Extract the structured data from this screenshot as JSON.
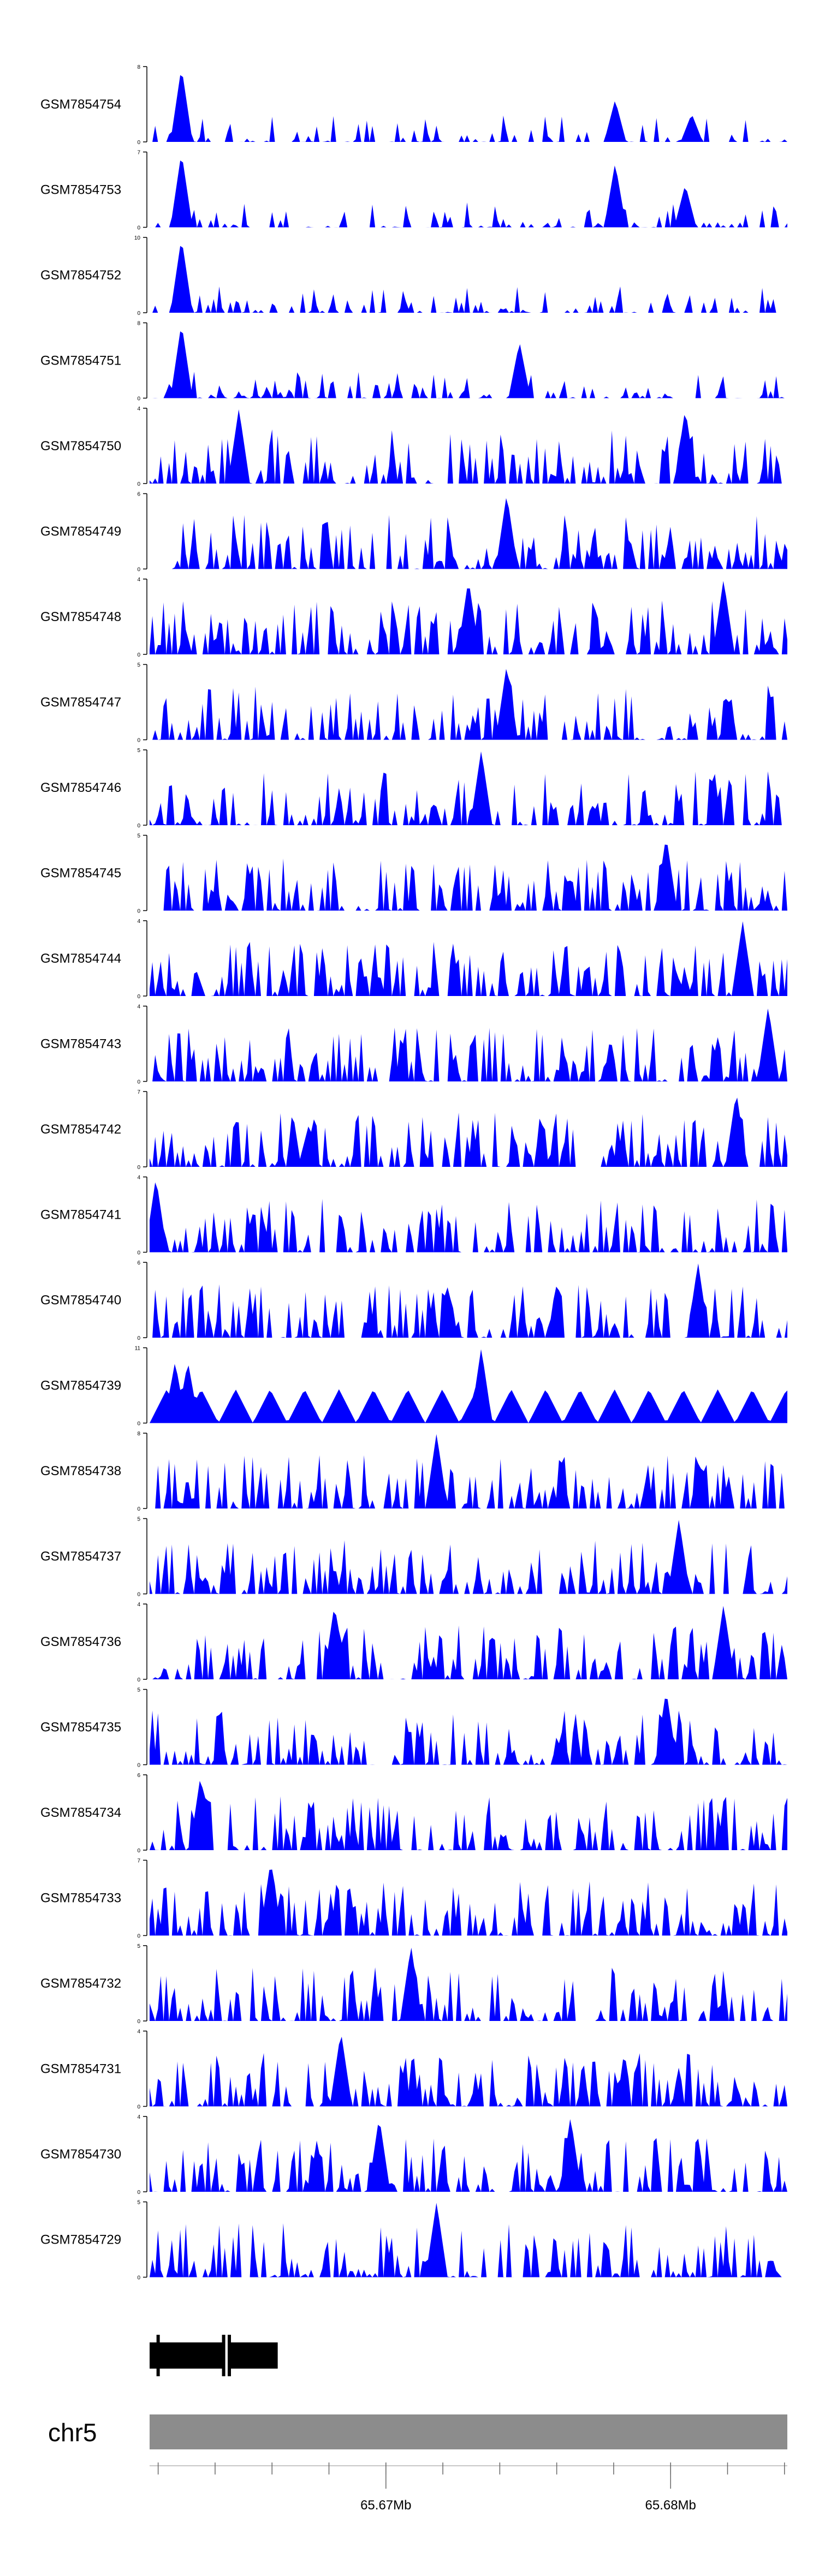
{
  "chart_data": {
    "type": "area",
    "title": "",
    "chromosome": "chr5",
    "axis": {
      "range_mb": [
        65.6617,
        65.6841
      ],
      "major_ticks": [
        {
          "value": 65.67,
          "label": "65.67Mb"
        },
        {
          "value": 65.68,
          "label": "65.68Mb"
        }
      ],
      "minor_tick_step_mb": 0.002
    },
    "gene_model": {
      "start_mb": 65.6617,
      "end_mb": 65.6662,
      "exons": [
        {
          "start_mb": 65.6617,
          "end_mb": 65.6643
        },
        {
          "start_mb": 65.6645,
          "end_mb": 65.6662
        }
      ],
      "markers_mb": [
        65.662,
        65.6643,
        65.6645
      ]
    },
    "accent_color": "#0000ff",
    "axis_bar_color": "#8c8c8c",
    "tracks": [
      {
        "name": "GSM7854754",
        "ymax": 8,
        "seed": 54,
        "style": "spiky",
        "peaks": [
          [
            0.05,
            8
          ],
          [
            0.73,
            4.5
          ],
          [
            0.85,
            3
          ]
        ]
      },
      {
        "name": "GSM7854753",
        "ymax": 7,
        "seed": 53,
        "style": "spiky",
        "peaks": [
          [
            0.05,
            7
          ],
          [
            0.73,
            6
          ],
          [
            0.84,
            4
          ]
        ]
      },
      {
        "name": "GSM7854752",
        "ymax": 10,
        "seed": 52,
        "style": "spiky",
        "peaks": [
          [
            0.05,
            10
          ]
        ]
      },
      {
        "name": "GSM7854751",
        "ymax": 8,
        "seed": 51,
        "style": "spiky",
        "peaks": [
          [
            0.05,
            8
          ],
          [
            0.58,
            6
          ]
        ]
      },
      {
        "name": "GSM7854750",
        "ymax": 4,
        "seed": 50,
        "style": "dense",
        "peaks": [
          [
            0.14,
            4
          ],
          [
            0.84,
            4
          ]
        ]
      },
      {
        "name": "GSM7854749",
        "ymax": 6,
        "seed": 49,
        "style": "dense",
        "peaks": [
          [
            0.56,
            6
          ]
        ]
      },
      {
        "name": "GSM7854748",
        "ymax": 4,
        "seed": 48,
        "style": "dense",
        "peaks": [
          [
            0.5,
            4
          ],
          [
            0.9,
            4
          ]
        ]
      },
      {
        "name": "GSM7854747",
        "ymax": 5,
        "seed": 47,
        "style": "dense",
        "peaks": [
          [
            0.56,
            5
          ]
        ]
      },
      {
        "name": "GSM7854746",
        "ymax": 5,
        "seed": 46,
        "style": "dense",
        "peaks": [
          [
            0.52,
            5
          ]
        ]
      },
      {
        "name": "GSM7854745",
        "ymax": 5,
        "seed": 45,
        "style": "dense",
        "peaks": [
          [
            0.81,
            5
          ]
        ]
      },
      {
        "name": "GSM7854744",
        "ymax": 4,
        "seed": 44,
        "style": "dense",
        "peaks": [
          [
            0.93,
            4
          ]
        ]
      },
      {
        "name": "GSM7854743",
        "ymax": 4,
        "seed": 43,
        "style": "dense",
        "peaks": [
          [
            0.97,
            4
          ]
        ]
      },
      {
        "name": "GSM7854742",
        "ymax": 7,
        "seed": 42,
        "style": "dense",
        "peaks": [
          [
            0.92,
            7
          ],
          [
            0.25,
            4
          ]
        ]
      },
      {
        "name": "GSM7854741",
        "ymax": 4,
        "seed": 41,
        "style": "dense",
        "peaks": [
          [
            0.01,
            4
          ]
        ]
      },
      {
        "name": "GSM7854740",
        "ymax": 6,
        "seed": 40,
        "style": "dense",
        "peaks": [
          [
            0.86,
            6
          ]
        ]
      },
      {
        "name": "GSM7854739",
        "ymax": 11,
        "seed": 39,
        "style": "sparse",
        "peaks": [
          [
            0.52,
            11
          ],
          [
            0.04,
            9
          ],
          [
            0.06,
            9
          ]
        ]
      },
      {
        "name": "GSM7854738",
        "ymax": 8,
        "seed": 38,
        "style": "dense",
        "peaks": [
          [
            0.45,
            8
          ]
        ]
      },
      {
        "name": "GSM7854737",
        "ymax": 5,
        "seed": 37,
        "style": "dense",
        "peaks": [
          [
            0.83,
            5
          ]
        ]
      },
      {
        "name": "GSM7854736",
        "ymax": 4,
        "seed": 36,
        "style": "dense",
        "peaks": [
          [
            0.29,
            4
          ],
          [
            0.9,
            4
          ]
        ]
      },
      {
        "name": "GSM7854735",
        "ymax": 5,
        "seed": 35,
        "style": "dense",
        "peaks": [
          [
            0.81,
            5
          ]
        ]
      },
      {
        "name": "GSM7854734",
        "ymax": 6,
        "seed": 34,
        "style": "dense",
        "peaks": [
          [
            0.08,
            6
          ]
        ]
      },
      {
        "name": "GSM7854733",
        "ymax": 7,
        "seed": 33,
        "style": "dense",
        "peaks": [
          [
            0.19,
            7
          ]
        ]
      },
      {
        "name": "GSM7854732",
        "ymax": 5,
        "seed": 32,
        "style": "dense",
        "peaks": [
          [
            0.41,
            5
          ]
        ]
      },
      {
        "name": "GSM7854731",
        "ymax": 4,
        "seed": 31,
        "style": "dense",
        "peaks": [
          [
            0.3,
            4
          ]
        ]
      },
      {
        "name": "GSM7854730",
        "ymax": 4,
        "seed": 30,
        "style": "dense",
        "peaks": [
          [
            0.36,
            4
          ],
          [
            0.66,
            4
          ]
        ]
      },
      {
        "name": "GSM7854729",
        "ymax": 5,
        "seed": 29,
        "style": "dense",
        "peaks": [
          [
            0.45,
            5
          ]
        ]
      }
    ]
  }
}
